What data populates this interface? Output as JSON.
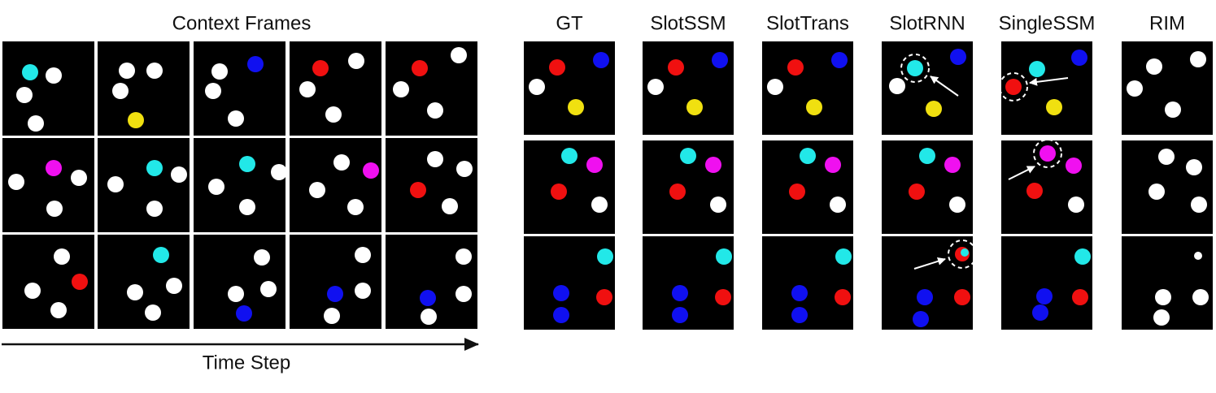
{
  "context": {
    "title": "Context Frames",
    "axis_label": "Time Step"
  },
  "methods": [
    "GT",
    "SlotSSM",
    "SlotTrans",
    "SlotRNN",
    "SingleSSM",
    "RIM"
  ]
}
